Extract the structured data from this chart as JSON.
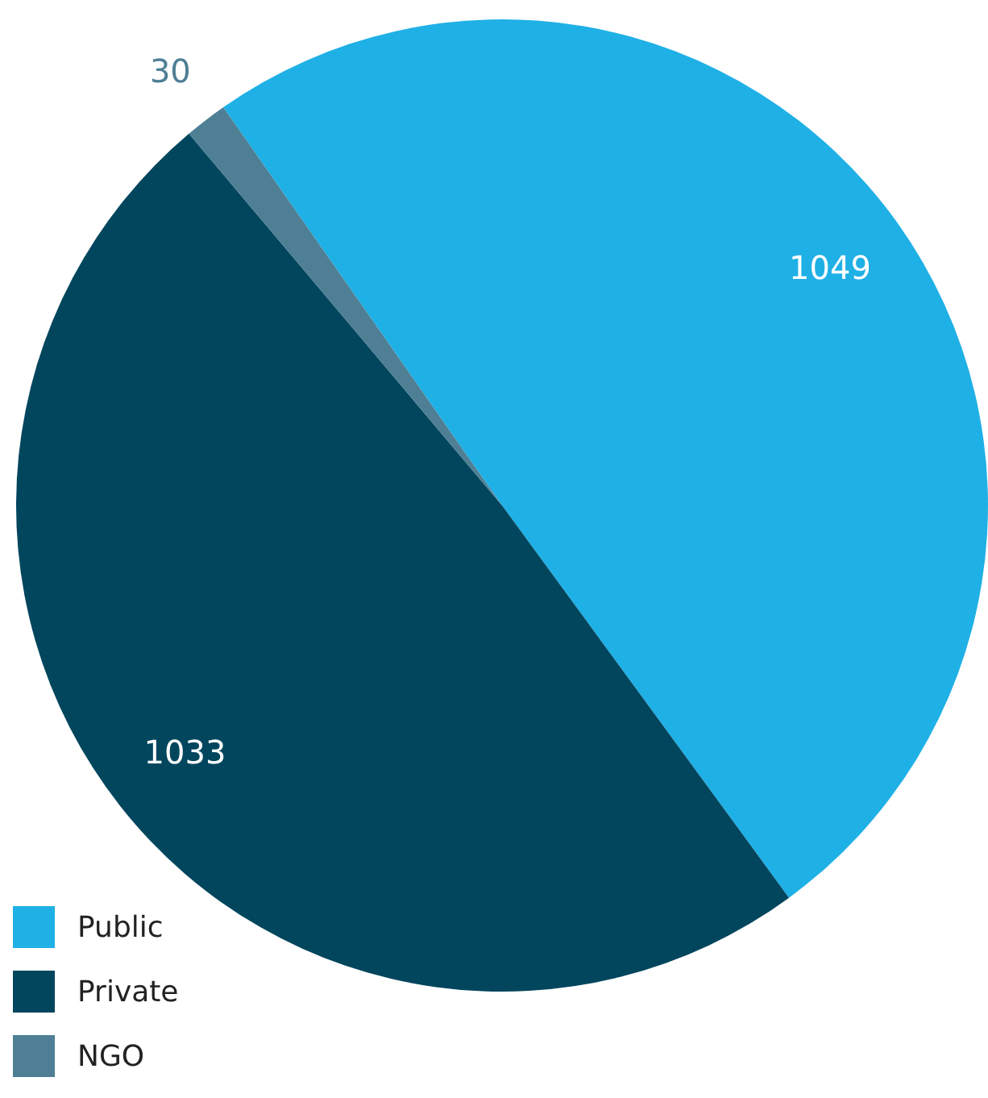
{
  "chart_data": {
    "type": "pie",
    "categories": [
      "Public",
      "Private",
      "NGO"
    ],
    "values": [
      1049,
      1033,
      30
    ],
    "colors": [
      "#1fb0e6",
      "#02465e",
      "#4e7f95"
    ],
    "data_labels": true,
    "legend": "bottom left"
  }
}
